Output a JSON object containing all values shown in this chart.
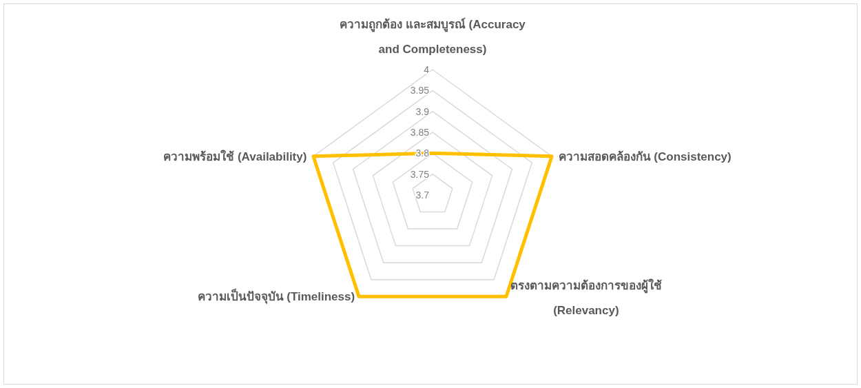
{
  "chart_data": {
    "type": "radar",
    "categories": [
      "ความถูกต้อง และสมบูรณ์ (Accuracy and Completeness)",
      "ความสอดคล้องกัน (Consistency)",
      "ตรงตามความต้องการของผู้ใช้ (Relevancy)",
      "ความเป็นปัจจุบัน (Timeliness)",
      "ความพร้อมใช้ (Availability)"
    ],
    "series": [
      {
        "color": "#ffc000",
        "values": [
          3.8,
          4,
          4,
          4,
          4
        ]
      }
    ],
    "ylim": [
      3.7,
      4
    ],
    "yticks": [
      3.7,
      3.75,
      3.8,
      3.85,
      3.9,
      3.95,
      4
    ],
    "grid": true
  }
}
